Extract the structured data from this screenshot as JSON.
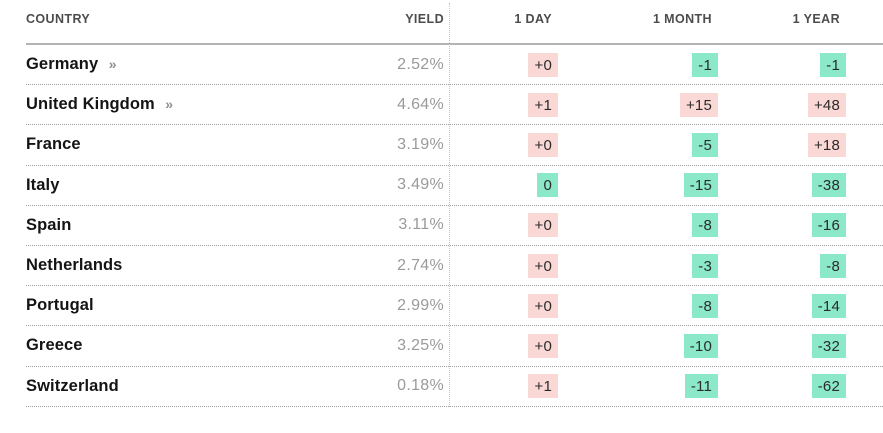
{
  "chart_data": {
    "type": "table",
    "columns": [
      "COUNTRY",
      "YIELD",
      "1 DAY",
      "1 MONTH",
      "1 YEAR"
    ],
    "rows": [
      {
        "country": "Germany",
        "has_link": true,
        "yield": "2.52%",
        "changes": [
          {
            "text": "+0",
            "tone": "up"
          },
          {
            "text": "-1",
            "tone": "down"
          },
          {
            "text": "-1",
            "tone": "down"
          }
        ]
      },
      {
        "country": "United Kingdom",
        "has_link": true,
        "yield": "4.64%",
        "changes": [
          {
            "text": "+1",
            "tone": "up"
          },
          {
            "text": "+15",
            "tone": "up"
          },
          {
            "text": "+48",
            "tone": "up"
          }
        ]
      },
      {
        "country": "France",
        "has_link": false,
        "yield": "3.19%",
        "changes": [
          {
            "text": "+0",
            "tone": "up"
          },
          {
            "text": "-5",
            "tone": "down"
          },
          {
            "text": "+18",
            "tone": "up"
          }
        ]
      },
      {
        "country": "Italy",
        "has_link": false,
        "yield": "3.49%",
        "changes": [
          {
            "text": "0",
            "tone": "down"
          },
          {
            "text": "-15",
            "tone": "down"
          },
          {
            "text": "-38",
            "tone": "down"
          }
        ]
      },
      {
        "country": "Spain",
        "has_link": false,
        "yield": "3.11%",
        "changes": [
          {
            "text": "+0",
            "tone": "up"
          },
          {
            "text": "-8",
            "tone": "down"
          },
          {
            "text": "-16",
            "tone": "down"
          }
        ]
      },
      {
        "country": "Netherlands",
        "has_link": false,
        "yield": "2.74%",
        "changes": [
          {
            "text": "+0",
            "tone": "up"
          },
          {
            "text": "-3",
            "tone": "down"
          },
          {
            "text": "-8",
            "tone": "down"
          }
        ]
      },
      {
        "country": "Portugal",
        "has_link": false,
        "yield": "2.99%",
        "changes": [
          {
            "text": "+0",
            "tone": "up"
          },
          {
            "text": "-8",
            "tone": "down"
          },
          {
            "text": "-14",
            "tone": "down"
          }
        ]
      },
      {
        "country": "Greece",
        "has_link": false,
        "yield": "3.25%",
        "changes": [
          {
            "text": "+0",
            "tone": "up"
          },
          {
            "text": "-10",
            "tone": "down"
          },
          {
            "text": "-32",
            "tone": "down"
          }
        ]
      },
      {
        "country": "Switzerland",
        "has_link": false,
        "yield": "0.18%",
        "changes": [
          {
            "text": "+1",
            "tone": "up"
          },
          {
            "text": "-11",
            "tone": "down"
          },
          {
            "text": "-62",
            "tone": "down"
          }
        ]
      }
    ]
  },
  "ui": {
    "chevron_icon": "»",
    "colors": {
      "positive_change_bg": "#F9D8D5",
      "negative_change_bg": "#8BE8C8"
    }
  }
}
